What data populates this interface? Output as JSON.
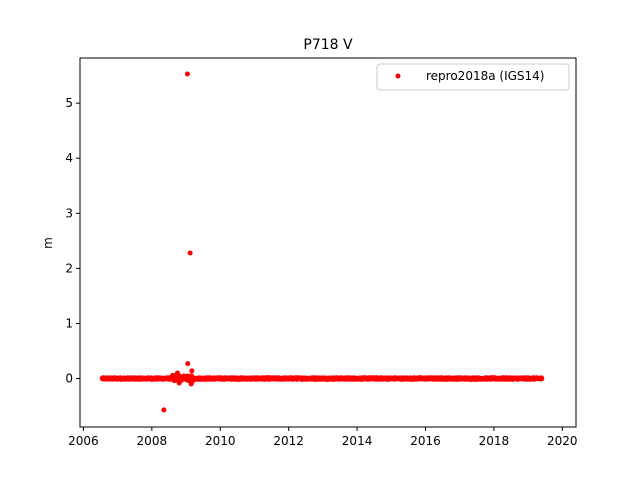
{
  "chart_data": {
    "type": "scatter",
    "title": "P718 V",
    "xlabel": "",
    "ylabel": "m",
    "xlim": [
      2005.9,
      2020.4
    ],
    "ylim": [
      -0.88,
      5.82
    ],
    "xticks": [
      2006,
      2008,
      2010,
      2012,
      2014,
      2016,
      2018,
      2020
    ],
    "xtick_labels": [
      "2006",
      "2008",
      "2010",
      "2012",
      "2014",
      "2016",
      "2018",
      "2020"
    ],
    "yticks": [
      0,
      1,
      2,
      3,
      4,
      5
    ],
    "ytick_labels": [
      "0",
      "1",
      "2",
      "3",
      "4",
      "5"
    ],
    "grid": false,
    "legend": "upper right",
    "series": [
      {
        "name": "repro2018a (IGS14)",
        "color": "#ff0000",
        "marker": "circle",
        "x_range": [
          2006.55,
          2019.4
        ],
        "baseline": 0.0,
        "noise": 0.015,
        "cluster": {
          "x_range": [
            2008.6,
            2009.2
          ],
          "amplitude": 0.08
        },
        "outliers": [
          {
            "x": 2009.04,
            "y": 5.53
          },
          {
            "x": 2009.12,
            "y": 2.28
          },
          {
            "x": 2009.05,
            "y": 0.27
          },
          {
            "x": 2009.17,
            "y": 0.14
          },
          {
            "x": 2008.35,
            "y": -0.57
          },
          {
            "x": 2008.75,
            "y": 0.1
          },
          {
            "x": 2008.8,
            "y": -0.08
          },
          {
            "x": 2009.15,
            "y": -0.1
          }
        ]
      }
    ]
  }
}
